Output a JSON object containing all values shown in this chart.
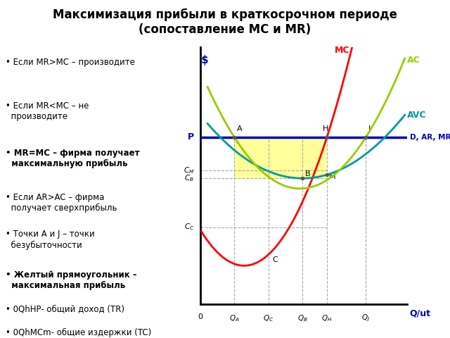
{
  "title_line1": "Максимизация прибыли в краткосрочном периоде",
  "title_line2": "(сопоставление МС и МR)",
  "title_fontsize": 12,
  "left_items": [
    {
      "text": "Если MR>MC – производите",
      "bold": false
    },
    {
      "text": "",
      "bold": false
    },
    {
      "text": "Если MR<MC – не\n производите",
      "bold": false
    },
    {
      "text": "",
      "bold": false
    },
    {
      "text": "MR=MC – фирма получает\n максимальную прибыль",
      "bold": true
    },
    {
      "text": "",
      "bold": false
    },
    {
      "text": "Если AR>AC – фирма\n получает сверхприбыль",
      "bold": false
    },
    {
      "text": "",
      "bold": false
    },
    {
      "text": "Точки А и J – точки\n безубыточности",
      "bold": false
    },
    {
      "text": "",
      "bold": false
    },
    {
      "text": "Желтый прямоугольник –\n максимальная прибыль",
      "bold": true
    },
    {
      "text": "",
      "bold": false
    },
    {
      "text": "0QhHP- общий доход (TR)",
      "bold": false
    },
    {
      "text": "",
      "bold": false
    },
    {
      "text": "0QhMCm- общие издержки (TC)",
      "bold": false
    }
  ],
  "mc_color": "#ff0000",
  "ac_color": "#99cc00",
  "avc_color": "#009999",
  "mr_color": "#0000bb",
  "highlight_color": "#ffff99",
  "dashed_color": "#aaaaaa",
  "axis_label_color": "#0000bb",
  "point_color": "#555555"
}
